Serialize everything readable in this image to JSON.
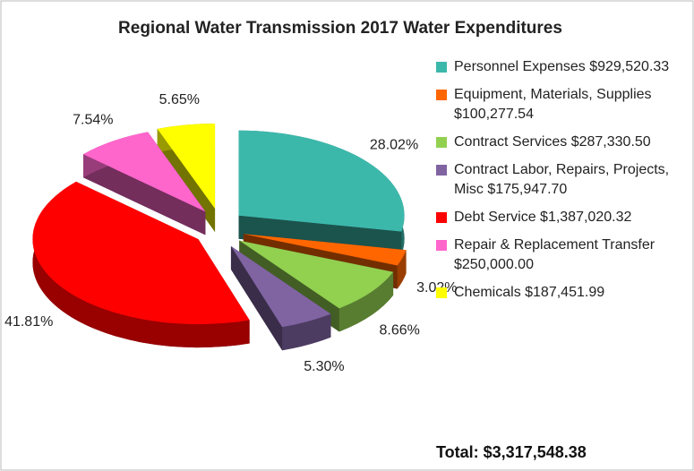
{
  "chart_data": {
    "type": "pie",
    "title": "Regional Water Transmission  2017 Water Expenditures",
    "categories": [
      "Personnel Expenses $929,520.33",
      "Equipment, Materials, Supplies $100,277.54",
      "Contract Services $287,330.50",
      "Contract Labor, Repairs, Projects, Misc $175,947.70",
      "Debt Service $1,387,020.32",
      "Repair & Replacement Transfer $250,000.00",
      "Chemicals $187,451.99"
    ],
    "values": [
      28.02,
      3.02,
      8.66,
      5.3,
      41.81,
      7.54,
      5.65
    ],
    "value_labels": [
      "28.02%",
      "3.02%",
      "8.66%",
      "5.30%",
      "41.81%",
      "7.54%",
      "5.65%"
    ],
    "colors": [
      "#3cb8ab",
      "#ff6600",
      "#92d050",
      "#8064a2",
      "#ff0000",
      "#ff66cc",
      "#ffff00"
    ],
    "total": "Total:  $3,317,548.38"
  }
}
